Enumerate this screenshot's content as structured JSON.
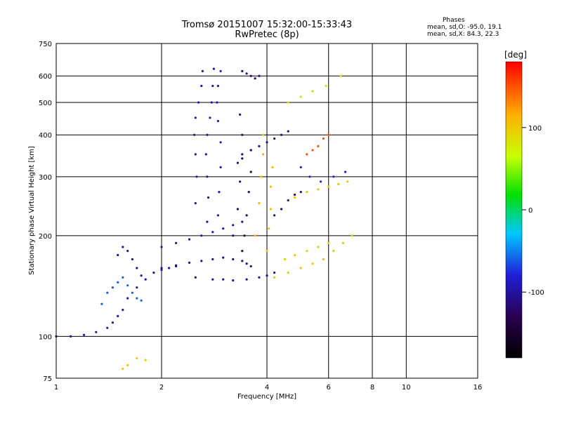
{
  "title": {
    "line1": "Tromsø 20151007 15:32:00-15:33:43",
    "line2": "RwPretec (8p)"
  },
  "phases": {
    "title": "Phases",
    "o_label": "mean, sd,O:",
    "o_value": "-95.0, 19.1",
    "x_label": "mean, sd,X:",
    "x_value": "84.3, 22.3"
  },
  "colorbar": {
    "label": "[deg]",
    "ticks": [
      "100",
      "0",
      "-100"
    ],
    "tick_values": [
      100,
      0,
      -100
    ],
    "range": [
      -180,
      180
    ]
  },
  "chart_data": {
    "type": "scatter",
    "xlabel": "Frequency [MHz]",
    "ylabel": "Stationary phase Virtual Height [km]",
    "xscale": "log2",
    "yscale": "log",
    "xlim": [
      1,
      16
    ],
    "ylim": [
      75,
      750
    ],
    "xticks": [
      1,
      2,
      4,
      6,
      8,
      10,
      16
    ],
    "xtick_labels": [
      "1",
      "2",
      "4",
      "6",
      "8",
      "10",
      "16"
    ],
    "yticks": [
      75,
      100,
      200,
      300,
      400,
      500,
      600,
      750
    ],
    "ytick_labels": [
      "75",
      "100",
      "200",
      "300",
      "400",
      "500",
      "600",
      "750"
    ],
    "grid": true,
    "traces": [
      {
        "name": "",
        "phase": -100,
        "points": [
          [
            1.0,
            100
          ],
          [
            1.1,
            100
          ],
          [
            1.2,
            101
          ],
          [
            1.3,
            103
          ],
          [
            1.4,
            106
          ],
          [
            1.45,
            110
          ],
          [
            1.5,
            115
          ],
          [
            1.55,
            120
          ],
          [
            1.6,
            130
          ],
          [
            1.7,
            140
          ],
          [
            1.8,
            148
          ],
          [
            1.9,
            155
          ],
          [
            2.0,
            158
          ],
          [
            2.1,
            160
          ],
          [
            2.2,
            162
          ]
        ]
      },
      {
        "name": "",
        "phase": -60,
        "points": [
          [
            1.35,
            125
          ],
          [
            1.4,
            135
          ],
          [
            1.45,
            140
          ],
          [
            1.5,
            145
          ],
          [
            1.55,
            150
          ],
          [
            1.6,
            142
          ],
          [
            1.65,
            135
          ],
          [
            1.7,
            130
          ],
          [
            1.75,
            128
          ]
        ]
      },
      {
        "name": "",
        "phase": -105,
        "points": [
          [
            1.5,
            175
          ],
          [
            1.55,
            185
          ],
          [
            1.6,
            180
          ],
          [
            1.65,
            170
          ],
          [
            1.7,
            160
          ],
          [
            1.75,
            152
          ]
        ]
      },
      {
        "name": "",
        "phase": -110,
        "points": [
          [
            2.0,
            160
          ],
          [
            2.2,
            163
          ],
          [
            2.4,
            166
          ],
          [
            2.6,
            168
          ],
          [
            2.8,
            170
          ],
          [
            3.0,
            172
          ],
          [
            3.2,
            170
          ],
          [
            3.4,
            168
          ],
          [
            3.5,
            165
          ],
          [
            3.6,
            162
          ]
        ]
      },
      {
        "name": "",
        "phase": -100,
        "points": [
          [
            2.0,
            185
          ],
          [
            2.2,
            190
          ],
          [
            2.4,
            195
          ],
          [
            2.6,
            200
          ],
          [
            2.8,
            205
          ],
          [
            3.0,
            210
          ],
          [
            3.2,
            215
          ],
          [
            3.4,
            220
          ]
        ]
      },
      {
        "name": "",
        "phase": -105,
        "points": [
          [
            2.5,
            150
          ],
          [
            2.8,
            148
          ],
          [
            3.0,
            148
          ],
          [
            3.2,
            147
          ],
          [
            3.5,
            148
          ],
          [
            3.8,
            150
          ],
          [
            4.0,
            152
          ],
          [
            4.2,
            155
          ]
        ]
      },
      {
        "name": "",
        "phase": -95,
        "points": [
          [
            2.5,
            250
          ],
          [
            2.52,
            300
          ],
          [
            2.5,
            350
          ],
          [
            2.48,
            400
          ],
          [
            2.5,
            450
          ],
          [
            2.55,
            500
          ],
          [
            2.6,
            560
          ],
          [
            2.62,
            620
          ]
        ]
      },
      {
        "name": "",
        "phase": -100,
        "points": [
          [
            2.7,
            220
          ],
          [
            2.72,
            260
          ],
          [
            2.7,
            300
          ],
          [
            2.68,
            350
          ],
          [
            2.7,
            400
          ],
          [
            2.75,
            450
          ],
          [
            2.78,
            500
          ],
          [
            2.8,
            560
          ],
          [
            2.82,
            630
          ]
        ]
      },
      {
        "name": "",
        "phase": -90,
        "points": [
          [
            2.9,
            230
          ],
          [
            2.92,
            270
          ],
          [
            2.95,
            320
          ],
          [
            2.95,
            380
          ],
          [
            2.9,
            440
          ],
          [
            2.88,
            500
          ],
          [
            2.9,
            560
          ],
          [
            2.95,
            620
          ]
        ]
      },
      {
        "name": "",
        "phase": -120,
        "points": [
          [
            3.2,
            200
          ],
          [
            3.3,
            240
          ],
          [
            3.35,
            290
          ],
          [
            3.4,
            340
          ],
          [
            3.4,
            400
          ],
          [
            3.35,
            460
          ]
        ]
      },
      {
        "name": "",
        "phase": -130,
        "points": [
          [
            3.4,
            180
          ],
          [
            3.45,
            200
          ],
          [
            3.5,
            230
          ],
          [
            3.55,
            270
          ],
          [
            3.6,
            310
          ],
          [
            3.6,
            360
          ]
        ]
      },
      {
        "name": "",
        "phase": -110,
        "points": [
          [
            3.3,
            330
          ],
          [
            3.4,
            350
          ],
          [
            3.6,
            360
          ],
          [
            3.8,
            370
          ],
          [
            4.0,
            380
          ],
          [
            4.2,
            390
          ],
          [
            4.4,
            400
          ],
          [
            4.6,
            410
          ]
        ]
      },
      {
        "name": "",
        "phase": 110,
        "points": [
          [
            3.7,
            200
          ],
          [
            3.8,
            250
          ],
          [
            3.85,
            300
          ],
          [
            3.9,
            350
          ],
          [
            3.9,
            400
          ]
        ]
      },
      {
        "name": "",
        "phase": 105,
        "points": [
          [
            4.0,
            180
          ],
          [
            4.05,
            210
          ],
          [
            4.1,
            240
          ],
          [
            4.1,
            280
          ],
          [
            4.15,
            320
          ]
        ]
      },
      {
        "name": "",
        "phase": 100,
        "points": [
          [
            4.2,
            150
          ],
          [
            4.6,
            155
          ],
          [
            5.0,
            160
          ],
          [
            5.4,
            165
          ],
          [
            5.8,
            170
          ],
          [
            6.2,
            180
          ],
          [
            6.6,
            190
          ],
          [
            7.0,
            200
          ]
        ]
      },
      {
        "name": "",
        "phase": 95,
        "points": [
          [
            4.5,
            170
          ],
          [
            4.8,
            175
          ],
          [
            5.2,
            180
          ],
          [
            5.6,
            185
          ],
          [
            6.0,
            190
          ]
        ]
      },
      {
        "name": "",
        "phase": 100,
        "points": [
          [
            4.8,
            260
          ],
          [
            5.2,
            270
          ],
          [
            5.6,
            275
          ],
          [
            6.0,
            280
          ],
          [
            6.4,
            285
          ],
          [
            6.8,
            290
          ]
        ]
      },
      {
        "name": "",
        "phase": -110,
        "points": [
          [
            4.2,
            230
          ],
          [
            4.4,
            240
          ],
          [
            4.6,
            255
          ],
          [
            4.8,
            265
          ],
          [
            5.0,
            270
          ]
        ]
      },
      {
        "name": "",
        "phase": -115,
        "points": [
          [
            3.4,
            620
          ],
          [
            3.5,
            610
          ],
          [
            3.6,
            600
          ],
          [
            3.7,
            590
          ],
          [
            3.8,
            600
          ]
        ]
      },
      {
        "name": "",
        "phase": 150,
        "points": [
          [
            5.2,
            350
          ],
          [
            5.4,
            360
          ],
          [
            5.6,
            370
          ],
          [
            5.8,
            390
          ],
          [
            6.0,
            400
          ]
        ]
      },
      {
        "name": "",
        "phase": -80,
        "points": [
          [
            5.0,
            320
          ],
          [
            5.3,
            300
          ],
          [
            5.7,
            290
          ],
          [
            6.2,
            300
          ],
          [
            6.7,
            310
          ]
        ]
      },
      {
        "name": "",
        "phase": 100,
        "points": [
          [
            1.55,
            80
          ],
          [
            1.6,
            82
          ],
          [
            1.7,
            86
          ],
          [
            1.8,
            85
          ]
        ]
      },
      {
        "name": "",
        "phase": 90,
        "points": [
          [
            4.6,
            500
          ],
          [
            5.0,
            520
          ],
          [
            5.4,
            540
          ],
          [
            5.9,
            560
          ],
          [
            6.5,
            600
          ]
        ]
      }
    ]
  }
}
